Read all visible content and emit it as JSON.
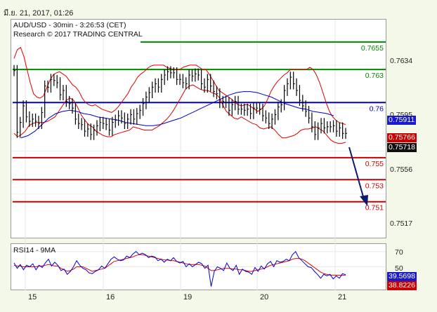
{
  "header": {
    "date_stamp": "มี.ย. 21, 2017, 01:26",
    "instrument_line": "AUD/USD - 30min - 3:26:53 (CET)",
    "research_line": "Research © 2017 TRADING CENTRAL"
  },
  "rsi_panel": {
    "label": "RSI14 - 9MA"
  },
  "colors": {
    "background": "#f4f8e9",
    "price": "#000000",
    "bollinger": "#dd0000",
    "moving_average": "#0000cc",
    "resistance": "#008800",
    "pivot": "#0000cc",
    "support": "#cc0000",
    "tag_blue": "#1a1acc",
    "tag_red": "#cc0000"
  },
  "chart_data": [
    {
      "type": "line",
      "title": "AUD/USD - 30min",
      "y_axis_ticks": [
        "0.7634",
        "0.7595",
        "0.7556",
        "0.7517"
      ],
      "x_axis_ticks": [
        "15",
        "16",
        "19",
        "20",
        "21"
      ],
      "ylim": [
        0.7478,
        0.7674
      ],
      "levels": [
        {
          "label": "0.7655",
          "value": 0.7655,
          "role": "resistance"
        },
        {
          "label": "0.763",
          "value": 0.763,
          "role": "resistance"
        },
        {
          "label": "0.76",
          "value": 0.76,
          "role": "pivot"
        },
        {
          "label": "0.755",
          "value": 0.755,
          "role": "support"
        },
        {
          "label": "0.753",
          "value": 0.753,
          "role": "support"
        },
        {
          "label": "0.751",
          "value": 0.751,
          "role": "support"
        }
      ],
      "price_tags": [
        {
          "label": "0.75911",
          "value": 0.75911,
          "color": "blue"
        },
        {
          "label": "0.75766",
          "value": 0.75766,
          "color": "red"
        },
        {
          "label": "0.75718",
          "value": 0.75718,
          "color": "price"
        }
      ],
      "series": [
        {
          "name": "close",
          "values": [
            0.7629,
            0.7573,
            0.7582,
            0.7597,
            0.7587,
            0.7583,
            0.7585,
            0.7583,
            0.7581,
            0.7591,
            0.7615,
            0.7614,
            0.7621,
            0.762,
            0.7618,
            0.7607,
            0.7611,
            0.7601,
            0.7599,
            0.7595,
            0.7585,
            0.7581,
            0.758,
            0.7574,
            0.7576,
            0.7571,
            0.7575,
            0.7579,
            0.7582,
            0.7581,
            0.758,
            0.7575,
            0.7582,
            0.7584,
            0.7588,
            0.7586,
            0.7581,
            0.7585,
            0.7589,
            0.7585,
            0.759,
            0.7593,
            0.7599,
            0.7605,
            0.7609,
            0.7614,
            0.7617,
            0.7614,
            0.7621,
            0.7625,
            0.7628,
            0.7627,
            0.7627,
            0.7621,
            0.7621,
            0.7618,
            0.7617,
            0.7625,
            0.7624,
            0.7626,
            0.7625,
            0.7617,
            0.7614,
            0.7621,
            0.7615,
            0.761,
            0.7608,
            0.76,
            0.7601,
            0.76,
            0.7593,
            0.7598,
            0.7601,
            0.7594,
            0.7594,
            0.7593,
            0.7594,
            0.759,
            0.7595,
            0.7595,
            0.7594,
            0.7588,
            0.7586,
            0.7581,
            0.7585,
            0.7589,
            0.7596,
            0.7598,
            0.7611,
            0.7617,
            0.7623,
            0.7617,
            0.7611,
            0.7602,
            0.7597,
            0.7592,
            0.7586,
            0.7578,
            0.7571,
            0.7577,
            0.7581,
            0.7577,
            0.7578,
            0.7578,
            0.7579,
            0.7574,
            0.7577,
            0.7572,
            0.7572
          ]
        },
        {
          "name": "bollinger_upper",
          "values": [
            0.764,
            0.7648,
            0.765,
            0.7642,
            0.763,
            0.7618,
            0.7608,
            0.7605,
            0.7604,
            0.7606,
            0.7613,
            0.762,
            0.7625,
            0.7627,
            0.7628,
            0.7626,
            0.7624,
            0.762,
            0.7616,
            0.7614,
            0.761,
            0.7604,
            0.76,
            0.7598,
            0.7597,
            0.7598,
            0.7596,
            0.7594,
            0.7593,
            0.7592,
            0.7591,
            0.7593,
            0.7596,
            0.76,
            0.7604,
            0.7608,
            0.7614,
            0.7618,
            0.7623,
            0.7626,
            0.7628,
            0.7631,
            0.7633,
            0.7634,
            0.7634,
            0.7634,
            0.7634,
            0.7632,
            0.7631,
            0.763,
            0.763,
            0.763,
            0.7632,
            0.7633,
            0.7634,
            0.7634,
            0.7634,
            0.7632,
            0.763,
            0.763,
            0.7626,
            0.7621,
            0.7616,
            0.7611,
            0.7609,
            0.7607,
            0.7605,
            0.7603,
            0.76,
            0.7598,
            0.7597,
            0.7598,
            0.7598,
            0.7596,
            0.7594,
            0.7592,
            0.7594,
            0.7597,
            0.7603,
            0.761,
            0.7615,
            0.7619,
            0.7622,
            0.7625,
            0.7627,
            0.763,
            0.763,
            0.763,
            0.763,
            0.763,
            0.763,
            0.7632,
            0.763,
            0.7625,
            0.7618,
            0.7609,
            0.76,
            0.7592,
            0.7587,
            0.7584,
            0.7582,
            0.7581,
            0.758
          ]
        },
        {
          "name": "bollinger_lower",
          "values": [
            0.7572,
            0.7569,
            0.7571,
            0.7574,
            0.7579,
            0.7581,
            0.7582,
            0.7582,
            0.7582,
            0.7583,
            0.7585,
            0.7587,
            0.7592,
            0.7597,
            0.7602,
            0.7604,
            0.7602,
            0.7596,
            0.7589,
            0.7584,
            0.758,
            0.7578,
            0.7574,
            0.7572,
            0.757,
            0.7569,
            0.7569,
            0.7571,
            0.7572,
            0.7573,
            0.7574,
            0.7575,
            0.7578,
            0.7577,
            0.7576,
            0.7575,
            0.7575,
            0.7575,
            0.7577,
            0.7579,
            0.7582,
            0.7585,
            0.7589,
            0.7594,
            0.76,
            0.7606,
            0.7612,
            0.7615,
            0.7616,
            0.7614,
            0.7612,
            0.7611,
            0.7611,
            0.7609,
            0.7608,
            0.7605,
            0.7598,
            0.7592,
            0.7589,
            0.7586,
            0.7585,
            0.7587,
            0.7585,
            0.7583,
            0.7581,
            0.758,
            0.7577,
            0.7576,
            0.7577,
            0.7578,
            0.7575,
            0.7571,
            0.7568,
            0.7568,
            0.7569,
            0.757,
            0.7572,
            0.7575,
            0.7576,
            0.7576,
            0.7577,
            0.7578,
            0.7576,
            0.7574,
            0.757,
            0.7566,
            0.7564,
            0.7563,
            0.7563,
            0.7564
          ]
        },
        {
          "name": "moving_average",
          "values": [
            0.7568,
            0.757,
            0.7574,
            0.758,
            0.7586,
            0.759,
            0.7592,
            0.7593,
            0.7592,
            0.759,
            0.7589,
            0.7587,
            0.7586,
            0.7585,
            0.7584,
            0.7582,
            0.7581,
            0.758,
            0.7579,
            0.7579,
            0.758,
            0.7582,
            0.7584,
            0.7586,
            0.7589,
            0.7592,
            0.7595,
            0.7598,
            0.7601,
            0.7604,
            0.7607,
            0.7609,
            0.761,
            0.761,
            0.7609,
            0.7607,
            0.7605,
            0.7602,
            0.7599,
            0.7597,
            0.7595,
            0.7594,
            0.7592,
            0.7591,
            0.759,
            0.7588
          ]
        }
      ]
    },
    {
      "type": "line",
      "title": "RSI14 - 9MA",
      "y_axis_ticks": [
        "70",
        "50"
      ],
      "ylim": [
        20,
        80
      ],
      "price_tags": [
        {
          "label": "39.5698",
          "value": 39.5698,
          "color": "blue"
        },
        {
          "label": "38.8226",
          "value": 38.8226,
          "color": "red"
        }
      ],
      "series": [
        {
          "name": "rsi",
          "values": [
            55,
            48,
            53,
            46,
            52,
            50,
            54,
            46,
            52,
            49,
            55,
            60,
            51,
            56,
            52,
            45,
            47,
            40,
            44,
            50,
            58,
            52,
            48,
            46,
            42,
            41,
            44,
            46,
            51,
            48,
            54,
            60,
            63,
            60,
            58,
            59,
            64,
            62,
            67,
            70,
            66,
            68,
            66,
            62,
            64,
            63,
            58,
            60,
            56,
            60,
            58,
            62,
            57,
            55,
            57,
            50,
            54,
            50,
            53,
            56,
            54,
            48,
            52,
            24,
            44,
            50,
            48,
            45,
            55,
            48,
            45,
            52,
            40,
            47,
            44,
            43,
            40,
            49,
            44,
            51,
            47,
            54,
            57,
            50,
            58,
            56,
            57,
            60,
            58,
            66,
            70,
            62,
            58,
            54,
            50,
            49,
            44,
            40,
            35,
            40,
            38,
            40,
            34,
            38,
            35,
            41,
            39.57
          ]
        },
        {
          "name": "rsi_ma",
          "values": [
            52,
            51,
            51,
            50,
            50,
            50,
            50,
            50,
            51,
            51,
            52,
            53,
            52,
            51,
            51,
            48,
            46,
            44,
            45,
            47,
            50,
            50,
            50,
            48,
            46,
            44,
            45,
            46,
            47,
            48,
            51,
            54,
            57,
            58,
            59,
            60,
            61,
            62,
            63,
            65,
            66,
            66,
            65,
            64,
            63,
            62,
            61,
            60,
            59,
            59,
            58,
            58,
            57,
            56,
            55,
            54,
            53,
            53,
            53,
            53,
            52,
            51,
            48,
            45,
            45,
            46,
            47,
            48,
            48,
            48,
            47,
            47,
            46,
            46,
            45,
            44,
            44,
            45,
            46,
            47,
            48,
            50,
            52,
            53,
            54,
            55,
            56,
            57,
            58,
            60,
            61,
            61,
            60,
            58,
            55,
            52,
            49,
            46,
            43,
            41,
            40,
            39,
            39,
            39,
            38.9,
            38.8,
            38.82
          ]
        }
      ]
    }
  ]
}
